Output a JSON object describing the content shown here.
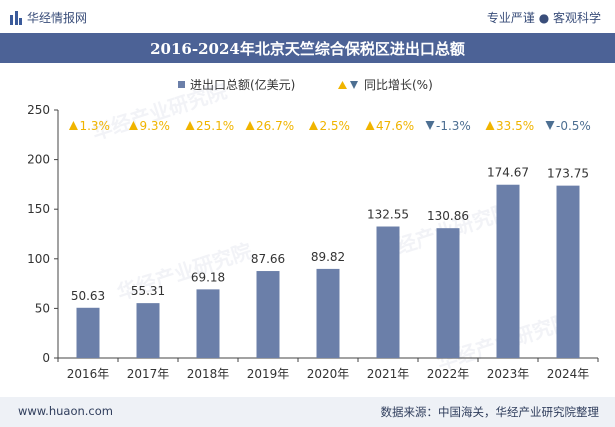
{
  "header": {
    "brand": "华经情报网",
    "tagline": "专业严谨 ● 客观科学"
  },
  "chart_data": {
    "type": "bar",
    "title": "2016-2024年北京天竺综合保税区进出口总额",
    "categories": [
      "2016年",
      "2017年",
      "2018年",
      "2019年",
      "2020年",
      "2021年",
      "2022年",
      "2023年",
      "2024年"
    ],
    "series": [
      {
        "name": "进出口总额(亿美元)",
        "values": [
          50.63,
          55.31,
          69.18,
          87.66,
          89.82,
          132.55,
          130.86,
          174.67,
          173.75
        ],
        "color": "#6b7fa9"
      }
    ],
    "growth": {
      "name": "同比增长(%)",
      "values": [
        1.3,
        9.3,
        25.1,
        26.7,
        2.5,
        47.6,
        -1.3,
        33.5,
        -0.5
      ],
      "labels": [
        "1.3%",
        "9.3%",
        "25.1%",
        "26.7%",
        "2.5%",
        "47.6%",
        "-1.3%",
        "33.5%",
        "-0.5%"
      ],
      "up_color": "#f0b400",
      "down_color": "#4d6f92"
    },
    "y_ticks": [
      0,
      50,
      100,
      150,
      200,
      250
    ],
    "ylim": [
      0,
      250
    ],
    "legend_position": "top-center",
    "grid": false
  },
  "watermark": "华经产业研究院",
  "footer": {
    "site": "www.huaon.com",
    "source": "数据来源：中国海关，华经产业研究院整理"
  }
}
